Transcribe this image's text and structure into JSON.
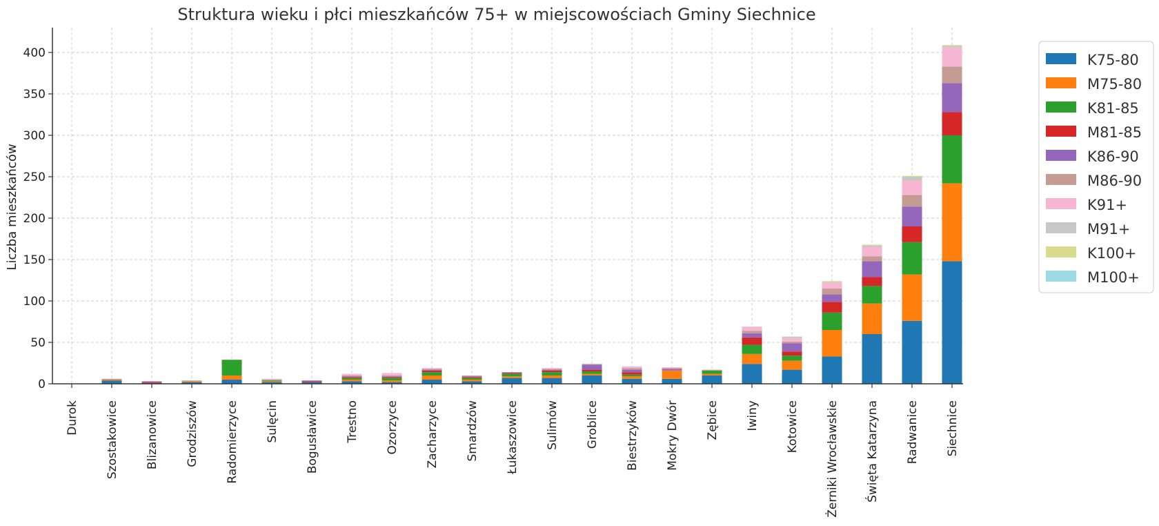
{
  "chart_data": {
    "type": "bar",
    "stacked": true,
    "title": "Struktura wieku i płci mieszkańców 75+ w miejscowościach Gminy Siechnice",
    "xlabel": "",
    "ylabel": "Liczba mieszkańców",
    "ylim": [
      0,
      430
    ],
    "yticks": [
      0,
      50,
      100,
      150,
      200,
      250,
      300,
      350,
      400
    ],
    "grid": true,
    "legend_position": "top-right-outside",
    "categories": [
      "Durok",
      "Szostakowice",
      "Blizanowice",
      "Grodziszów",
      "Radomierzyce",
      "Sulęcin",
      "Bogusławice",
      "Trestno",
      "Ozorzyce",
      "Zacharzyce",
      "Smardzów",
      "Łukaszowice",
      "Sulimów",
      "Groblice",
      "Biestrzyków",
      "Mokry Dwór",
      "Zębice",
      "Iwiny",
      "Kotowice",
      "Żerniki Wrocławskie",
      "Święta Katarzyna",
      "Radwanice",
      "Siechnice"
    ],
    "series": [
      {
        "name": "K75-80",
        "color": "#1f77b4",
        "values": [
          0,
          4,
          1,
          2,
          5,
          2,
          2,
          3,
          2,
          5,
          3,
          7,
          7,
          10,
          6,
          6,
          10,
          24,
          17,
          33,
          60,
          76,
          148
        ]
      },
      {
        "name": "M75-80",
        "color": "#ff7f0e",
        "values": [
          0,
          1,
          0,
          1,
          5,
          1,
          0,
          2,
          2,
          5,
          2,
          2,
          3,
          2,
          3,
          10,
          2,
          12,
          11,
          32,
          37,
          56,
          94
        ]
      },
      {
        "name": "K81-85",
        "color": "#2ca02c",
        "values": [
          0,
          0,
          0,
          0,
          19,
          1,
          0,
          2,
          3,
          4,
          2,
          3,
          4,
          3,
          2,
          0,
          4,
          11,
          6,
          21,
          21,
          39,
          58
        ]
      },
      {
        "name": "M81-85",
        "color": "#d62728",
        "values": [
          0,
          0,
          1,
          0,
          0,
          0,
          1,
          1,
          1,
          2,
          1,
          1,
          2,
          2,
          3,
          0,
          0,
          9,
          5,
          13,
          11,
          19,
          28
        ]
      },
      {
        "name": "K86-90",
        "color": "#9467bd",
        "values": [
          0,
          0,
          1,
          0,
          0,
          0,
          1,
          1,
          1,
          1,
          1,
          1,
          1,
          6,
          3,
          2,
          0,
          5,
          10,
          9,
          19,
          24,
          35
        ]
      },
      {
        "name": "M86-90",
        "color": "#c49c94",
        "values": [
          0,
          1,
          0,
          1,
          0,
          1,
          0,
          1,
          1,
          1,
          1,
          0,
          1,
          1,
          2,
          1,
          1,
          3,
          2,
          7,
          6,
          14,
          20
        ]
      },
      {
        "name": "K91+",
        "color": "#f7b6d2",
        "values": [
          0,
          0,
          0,
          0,
          0,
          1,
          0,
          2,
          3,
          1,
          0,
          0,
          1,
          0,
          2,
          1,
          0,
          5,
          4,
          7,
          11,
          17,
          23
        ]
      },
      {
        "name": "M91+",
        "color": "#c7c7c7",
        "values": [
          0,
          0,
          0,
          0,
          0,
          0,
          0,
          0,
          0,
          0,
          0,
          0,
          0,
          0,
          0,
          0,
          0,
          0,
          2,
          1,
          2,
          5,
          2
        ]
      },
      {
        "name": "K100+",
        "color": "#dbdb8d",
        "values": [
          0,
          0,
          0,
          0,
          0,
          0,
          0,
          0,
          0,
          0,
          0,
          0,
          0,
          0,
          0,
          0,
          0,
          0,
          0,
          1,
          1,
          1,
          1
        ]
      },
      {
        "name": "M100+",
        "color": "#9edae5",
        "values": [
          0,
          0,
          0,
          0,
          0,
          0,
          0,
          0,
          0,
          0,
          0,
          0,
          0,
          0,
          0,
          0,
          0,
          0,
          0,
          0,
          0,
          0,
          0
        ]
      }
    ]
  }
}
